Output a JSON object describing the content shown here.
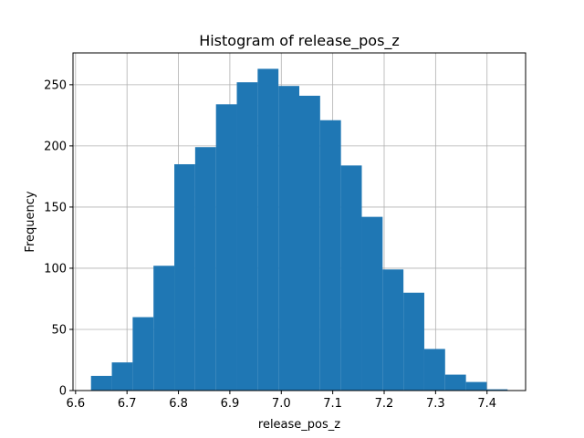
{
  "chart_data": {
    "type": "histogram",
    "title": "Histogram of release_pos_z",
    "xlabel": "release_pos_z",
    "ylabel": "Frequency",
    "xlim": [
      6.595,
      7.475
    ],
    "ylim": [
      0,
      276
    ],
    "x_ticks": [
      6.6,
      6.7,
      6.8,
      6.9,
      7.0,
      7.1,
      7.2,
      7.3,
      7.4
    ],
    "x_tick_labels": [
      "6.6",
      "6.7",
      "6.8",
      "6.9",
      "7.0",
      "7.1",
      "7.2",
      "7.3",
      "7.4"
    ],
    "y_ticks": [
      0,
      50,
      100,
      150,
      200,
      250
    ],
    "y_tick_labels": [
      "0",
      "50",
      "100",
      "150",
      "200",
      "250"
    ],
    "grid": true,
    "bar_color": "#1f77b4",
    "bin_edges": [
      6.63,
      6.6705,
      6.711,
      6.7515,
      6.792,
      6.8325,
      6.873,
      6.9135,
      6.954,
      6.9945,
      7.035,
      7.0755,
      7.116,
      7.1565,
      7.197,
      7.2375,
      7.278,
      7.3185,
      7.359,
      7.3995,
      7.44
    ],
    "counts": [
      12,
      23,
      60,
      102,
      185,
      199,
      234,
      252,
      263,
      249,
      241,
      221,
      184,
      142,
      99,
      80,
      34,
      13,
      7,
      1
    ]
  }
}
